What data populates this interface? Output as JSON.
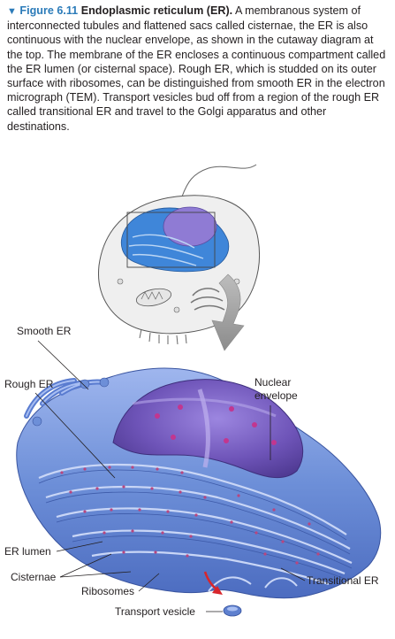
{
  "caption": {
    "marker": "▼",
    "figure_number": "Figure 6.11",
    "title": "Endoplasmic reticulum (ER).",
    "body": " A membranous system of interconnected tubules and flattened sacs called cisternae, the ER is also continuous with the nuclear envelope, as shown in the cutaway diagram at the top. The membrane of the ER encloses a continuous compartment called the ER lumen (or cisternal space). Rough ER, which is studded on its outer surface with ribosomes, can be distinguished from smooth ER in the electron micrograph (TEM). Transport vesicles bud off from a region of the rough ER called transitional ER and travel to the Golgi apparatus and other destinations."
  },
  "labels": {
    "smooth_er": "Smooth ER",
    "rough_er": "Rough ER",
    "nuclear_envelope_1": "Nuclear",
    "nuclear_envelope_2": "envelope",
    "er_lumen": "ER lumen",
    "cisternae": "Cisternae",
    "ribosomes": "Ribosomes",
    "transport_vesicle": "Transport vesicle",
    "transitional_er": "Transitional ER"
  },
  "colors": {
    "accent": "#2b7bb9",
    "er_blue": "#4a6fc4",
    "er_light": "#8aa6e6",
    "nucleus_purple": "#7a5fc2",
    "ribosome": "#a64a8f",
    "arrow_gray": "#9a9a9a",
    "red_arrow": "#d8262c"
  }
}
